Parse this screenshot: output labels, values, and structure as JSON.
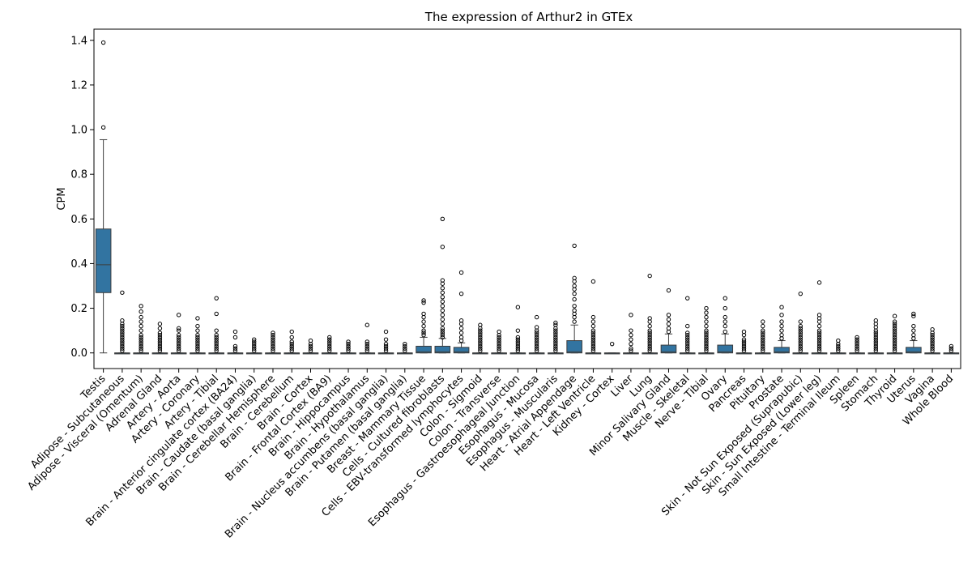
{
  "chart_data": {
    "type": "box",
    "title": "The expression of Arthur2 in GTEx",
    "xlabel": "",
    "ylabel": "CPM",
    "ylim": [
      -0.07,
      1.45
    ],
    "yticks": [
      "0.0",
      "0.2",
      "0.4",
      "0.6",
      "0.8",
      "1.0",
      "1.2",
      "1.4"
    ],
    "grid": false,
    "box_color": "#3274a1",
    "categories": [
      "Testis",
      "Adipose - Subcutaneous",
      "Adipose - Visceral (Omentum)",
      "Adrenal Gland",
      "Artery - Aorta",
      "Artery - Coronary",
      "Artery - Tibial",
      "Brain - Anterior cingulate cortex (BA24)",
      "Brain - Caudate (basal ganglia)",
      "Brain - Cerebellar Hemisphere",
      "Brain - Cerebellum",
      "Brain - Cortex",
      "Brain - Frontal Cortex (BA9)",
      "Brain - Hippocampus",
      "Brain - Hypothalamus",
      "Brain - Nucleus accumbens (basal ganglia)",
      "Brain - Putamen (basal ganglia)",
      "Breast - Mammary Tissue",
      "Cells - Cultured fibroblasts",
      "Cells - EBV-transformed lymphocytes",
      "Colon - Sigmoid",
      "Colon - Transverse",
      "Esophagus - Gastroesophageal Junction",
      "Esophagus - Mucosa",
      "Esophagus - Muscularis",
      "Heart - Atrial Appendage",
      "Heart - Left Ventricle",
      "Kidney - Cortex",
      "Liver",
      "Lung",
      "Minor Salivary Gland",
      "Muscle - Skeletal",
      "Nerve - Tibial",
      "Ovary",
      "Pancreas",
      "Pituitary",
      "Prostate",
      "Skin - Not Sun Exposed (Suprapubic)",
      "Skin - Sun Exposed (Lower leg)",
      "Small Intestine - Terminal Ileum",
      "Spleen",
      "Stomach",
      "Thyroid",
      "Uterus",
      "Vagina",
      "Whole Blood"
    ],
    "boxes": [
      {
        "q1": 0.27,
        "median": 0.395,
        "q3": 0.555,
        "wlo": 0.0,
        "whi": 0.955,
        "outliers": [
          1.01,
          1.39
        ]
      },
      {
        "q1": 0,
        "median": 0,
        "q3": 0,
        "wlo": 0,
        "whi": 0,
        "outliers": [
          0.01,
          0.02,
          0.03,
          0.04,
          0.05,
          0.06,
          0.07,
          0.08,
          0.09,
          0.1,
          0.11,
          0.12,
          0.13,
          0.145,
          0.27
        ]
      },
      {
        "q1": 0,
        "median": 0,
        "q3": 0,
        "wlo": 0,
        "whi": 0,
        "outliers": [
          0.01,
          0.02,
          0.03,
          0.04,
          0.05,
          0.06,
          0.07,
          0.08,
          0.1,
          0.12,
          0.14,
          0.16,
          0.185,
          0.21
        ]
      },
      {
        "q1": 0,
        "median": 0,
        "q3": 0,
        "wlo": 0,
        "whi": 0,
        "outliers": [
          0.01,
          0.02,
          0.03,
          0.04,
          0.05,
          0.06,
          0.07,
          0.08,
          0.09,
          0.11,
          0.13
        ]
      },
      {
        "q1": 0,
        "median": 0,
        "q3": 0,
        "wlo": 0,
        "whi": 0,
        "outliers": [
          0.01,
          0.02,
          0.03,
          0.04,
          0.05,
          0.06,
          0.07,
          0.08,
          0.1,
          0.11,
          0.17
        ]
      },
      {
        "q1": 0,
        "median": 0,
        "q3": 0,
        "wlo": 0,
        "whi": 0,
        "outliers": [
          0.01,
          0.02,
          0.03,
          0.04,
          0.05,
          0.06,
          0.07,
          0.08,
          0.1,
          0.12,
          0.155
        ]
      },
      {
        "q1": 0,
        "median": 0,
        "q3": 0,
        "wlo": 0,
        "whi": 0,
        "outliers": [
          0.01,
          0.02,
          0.03,
          0.04,
          0.05,
          0.06,
          0.07,
          0.08,
          0.1,
          0.175,
          0.245
        ]
      },
      {
        "q1": 0,
        "median": 0,
        "q3": 0,
        "wlo": 0,
        "whi": 0,
        "outliers": [
          0.01,
          0.02,
          0.03,
          0.07,
          0.095
        ]
      },
      {
        "q1": 0,
        "median": 0,
        "q3": 0,
        "wlo": 0,
        "whi": 0,
        "outliers": [
          0.01,
          0.02,
          0.03,
          0.04,
          0.05,
          0.06
        ]
      },
      {
        "q1": 0,
        "median": 0,
        "q3": 0,
        "wlo": 0,
        "whi": 0,
        "outliers": [
          0.01,
          0.02,
          0.03,
          0.04,
          0.05,
          0.06,
          0.07,
          0.08,
          0.09
        ]
      },
      {
        "q1": 0,
        "median": 0,
        "q3": 0,
        "wlo": 0,
        "whi": 0,
        "outliers": [
          0.01,
          0.02,
          0.03,
          0.04,
          0.05,
          0.07,
          0.095
        ]
      },
      {
        "q1": 0,
        "median": 0,
        "q3": 0,
        "wlo": 0,
        "whi": 0,
        "outliers": [
          0.01,
          0.02,
          0.03,
          0.04,
          0.055
        ]
      },
      {
        "q1": 0,
        "median": 0,
        "q3": 0,
        "wlo": 0,
        "whi": 0,
        "outliers": [
          0.01,
          0.02,
          0.03,
          0.04,
          0.05,
          0.06,
          0.07
        ]
      },
      {
        "q1": 0,
        "median": 0,
        "q3": 0,
        "wlo": 0,
        "whi": 0,
        "outliers": [
          0.01,
          0.02,
          0.03,
          0.04,
          0.05
        ]
      },
      {
        "q1": 0,
        "median": 0,
        "q3": 0,
        "wlo": 0,
        "whi": 0,
        "outliers": [
          0.01,
          0.02,
          0.03,
          0.04,
          0.05,
          0.125
        ]
      },
      {
        "q1": 0,
        "median": 0,
        "q3": 0,
        "wlo": 0,
        "whi": 0,
        "outliers": [
          0.01,
          0.02,
          0.03,
          0.04,
          0.06,
          0.095
        ]
      },
      {
        "q1": 0,
        "median": 0,
        "q3": 0,
        "wlo": 0,
        "whi": 0,
        "outliers": [
          0.01,
          0.02,
          0.03,
          0.04
        ]
      },
      {
        "q1": 0,
        "median": 0.005,
        "q3": 0.03,
        "wlo": 0,
        "whi": 0.07,
        "outliers": [
          0.08,
          0.09,
          0.1,
          0.12,
          0.14,
          0.16,
          0.175,
          0.225,
          0.235
        ]
      },
      {
        "q1": 0,
        "median": 0.005,
        "q3": 0.03,
        "wlo": 0,
        "whi": 0.065,
        "outliers": [
          0.07,
          0.08,
          0.09,
          0.1,
          0.11,
          0.13,
          0.15,
          0.17,
          0.19,
          0.21,
          0.23,
          0.25,
          0.27,
          0.29,
          0.31,
          0.325,
          0.475,
          0.6
        ]
      },
      {
        "q1": 0,
        "median": 0.005,
        "q3": 0.025,
        "wlo": 0,
        "whi": 0.045,
        "outliers": [
          0.055,
          0.07,
          0.09,
          0.11,
          0.13,
          0.145,
          0.265,
          0.36
        ]
      },
      {
        "q1": 0,
        "median": 0,
        "q3": 0,
        "wlo": 0,
        "whi": 0,
        "outliers": [
          0.01,
          0.02,
          0.03,
          0.04,
          0.05,
          0.06,
          0.07,
          0.08,
          0.09,
          0.1,
          0.11,
          0.125
        ]
      },
      {
        "q1": 0,
        "median": 0,
        "q3": 0,
        "wlo": 0,
        "whi": 0,
        "outliers": [
          0.01,
          0.02,
          0.03,
          0.04,
          0.05,
          0.06,
          0.07,
          0.08,
          0.095
        ]
      },
      {
        "q1": 0,
        "median": 0,
        "q3": 0,
        "wlo": 0,
        "whi": 0,
        "outliers": [
          0.01,
          0.02,
          0.03,
          0.04,
          0.05,
          0.06,
          0.07,
          0.1,
          0.205
        ]
      },
      {
        "q1": 0,
        "median": 0,
        "q3": 0,
        "wlo": 0,
        "whi": 0,
        "outliers": [
          0.01,
          0.02,
          0.03,
          0.04,
          0.05,
          0.06,
          0.07,
          0.08,
          0.09,
          0.1,
          0.115,
          0.16
        ]
      },
      {
        "q1": 0,
        "median": 0,
        "q3": 0,
        "wlo": 0,
        "whi": 0,
        "outliers": [
          0.01,
          0.02,
          0.03,
          0.04,
          0.05,
          0.06,
          0.07,
          0.08,
          0.09,
          0.1,
          0.11,
          0.125,
          0.135
        ]
      },
      {
        "q1": 0,
        "median": 0.005,
        "q3": 0.055,
        "wlo": 0,
        "whi": 0.125,
        "outliers": [
          0.14,
          0.16,
          0.175,
          0.19,
          0.21,
          0.24,
          0.265,
          0.285,
          0.3,
          0.32,
          0.335,
          0.48
        ]
      },
      {
        "q1": 0,
        "median": 0,
        "q3": 0,
        "wlo": 0,
        "whi": 0,
        "outliers": [
          0.01,
          0.02,
          0.03,
          0.04,
          0.05,
          0.06,
          0.07,
          0.08,
          0.09,
          0.1,
          0.12,
          0.14,
          0.16,
          0.32
        ]
      },
      {
        "q1": 0,
        "median": 0,
        "q3": 0,
        "wlo": 0,
        "whi": 0,
        "outliers": [
          0.04
        ]
      },
      {
        "q1": 0,
        "median": 0,
        "q3": 0,
        "wlo": 0,
        "whi": 0,
        "outliers": [
          0.01,
          0.02,
          0.04,
          0.06,
          0.08,
          0.1,
          0.17
        ]
      },
      {
        "q1": 0,
        "median": 0,
        "q3": 0,
        "wlo": 0,
        "whi": 0,
        "outliers": [
          0.01,
          0.02,
          0.03,
          0.04,
          0.05,
          0.06,
          0.07,
          0.08,
          0.09,
          0.1,
          0.12,
          0.14,
          0.155,
          0.345
        ]
      },
      {
        "q1": 0,
        "median": 0.005,
        "q3": 0.035,
        "wlo": 0,
        "whi": 0.085,
        "outliers": [
          0.095,
          0.11,
          0.13,
          0.15,
          0.17,
          0.28
        ]
      },
      {
        "q1": 0,
        "median": 0,
        "q3": 0,
        "wlo": 0,
        "whi": 0,
        "outliers": [
          0.01,
          0.02,
          0.03,
          0.04,
          0.05,
          0.06,
          0.07,
          0.08,
          0.09,
          0.12,
          0.245
        ]
      },
      {
        "q1": 0,
        "median": 0,
        "q3": 0,
        "wlo": 0,
        "whi": 0,
        "outliers": [
          0.01,
          0.02,
          0.03,
          0.04,
          0.05,
          0.06,
          0.07,
          0.08,
          0.09,
          0.1,
          0.12,
          0.14,
          0.16,
          0.18,
          0.2
        ]
      },
      {
        "q1": 0,
        "median": 0.005,
        "q3": 0.035,
        "wlo": 0,
        "whi": 0.085,
        "outliers": [
          0.095,
          0.12,
          0.14,
          0.16,
          0.2,
          0.245
        ]
      },
      {
        "q1": 0,
        "median": 0,
        "q3": 0,
        "wlo": 0,
        "whi": 0,
        "outliers": [
          0.01,
          0.02,
          0.03,
          0.04,
          0.05,
          0.06,
          0.08,
          0.095
        ]
      },
      {
        "q1": 0,
        "median": 0,
        "q3": 0,
        "wlo": 0,
        "whi": 0,
        "outliers": [
          0.01,
          0.02,
          0.03,
          0.04,
          0.05,
          0.06,
          0.07,
          0.08,
          0.09,
          0.1,
          0.12,
          0.14
        ]
      },
      {
        "q1": 0,
        "median": 0.005,
        "q3": 0.025,
        "wlo": 0,
        "whi": 0.055,
        "outliers": [
          0.065,
          0.08,
          0.1,
          0.12,
          0.14,
          0.17,
          0.205
        ]
      },
      {
        "q1": 0,
        "median": 0,
        "q3": 0,
        "wlo": 0,
        "whi": 0,
        "outliers": [
          0.01,
          0.02,
          0.03,
          0.04,
          0.05,
          0.06,
          0.07,
          0.08,
          0.09,
          0.1,
          0.11,
          0.12,
          0.14,
          0.265
        ]
      },
      {
        "q1": 0,
        "median": 0,
        "q3": 0,
        "wlo": 0,
        "whi": 0,
        "outliers": [
          0.01,
          0.02,
          0.03,
          0.04,
          0.05,
          0.06,
          0.07,
          0.08,
          0.09,
          0.1,
          0.12,
          0.14,
          0.155,
          0.17,
          0.315
        ]
      },
      {
        "q1": 0,
        "median": 0,
        "q3": 0,
        "wlo": 0,
        "whi": 0,
        "outliers": [
          0.01,
          0.02,
          0.03,
          0.04,
          0.055
        ]
      },
      {
        "q1": 0,
        "median": 0,
        "q3": 0,
        "wlo": 0,
        "whi": 0,
        "outliers": [
          0.01,
          0.02,
          0.03,
          0.04,
          0.05,
          0.06,
          0.07
        ]
      },
      {
        "q1": 0,
        "median": 0,
        "q3": 0,
        "wlo": 0,
        "whi": 0,
        "outliers": [
          0.01,
          0.02,
          0.03,
          0.04,
          0.05,
          0.06,
          0.07,
          0.08,
          0.09,
          0.1,
          0.115,
          0.13,
          0.145
        ]
      },
      {
        "q1": 0,
        "median": 0,
        "q3": 0,
        "wlo": 0,
        "whi": 0,
        "outliers": [
          0.01,
          0.02,
          0.03,
          0.04,
          0.05,
          0.06,
          0.07,
          0.08,
          0.09,
          0.1,
          0.11,
          0.12,
          0.13,
          0.14,
          0.165
        ]
      },
      {
        "q1": 0,
        "median": 0.005,
        "q3": 0.025,
        "wlo": 0,
        "whi": 0.055,
        "outliers": [
          0.065,
          0.08,
          0.1,
          0.12,
          0.165,
          0.175
        ]
      },
      {
        "q1": 0,
        "median": 0,
        "q3": 0,
        "wlo": 0,
        "whi": 0,
        "outliers": [
          0.01,
          0.02,
          0.03,
          0.04,
          0.05,
          0.06,
          0.07,
          0.08,
          0.09,
          0.105
        ]
      },
      {
        "q1": 0,
        "median": 0,
        "q3": 0,
        "wlo": 0,
        "whi": 0,
        "outliers": [
          0.01,
          0.02,
          0.03
        ]
      }
    ]
  }
}
